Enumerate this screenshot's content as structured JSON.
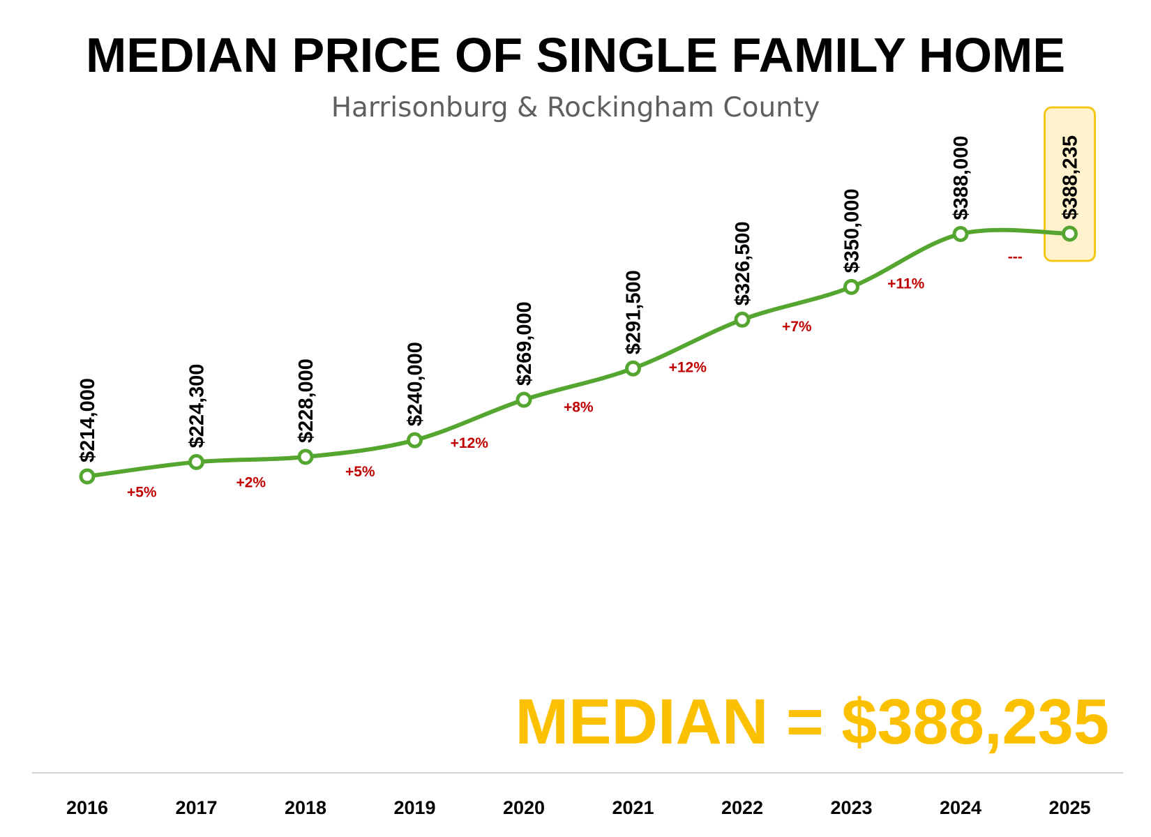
{
  "chart_data": {
    "type": "line",
    "title": "MEDIAN PRICE OF SINGLE FAMILY HOME",
    "subtitle": "Harrisonburg & Rockingham County",
    "categories": [
      "2016",
      "2017",
      "2018",
      "2019",
      "2020",
      "2021",
      "2022",
      "2023",
      "2024",
      "2025"
    ],
    "values": [
      214000,
      224300,
      228000,
      240000,
      269000,
      291500,
      326500,
      350000,
      388000,
      388235
    ],
    "value_labels": [
      "$214,000",
      "$224,300",
      "$228,000",
      "$240,000",
      "$269,000",
      "$291,500",
      "$326,500",
      "$350,000",
      "$388,000",
      "$388,235"
    ],
    "change_labels": [
      "+5%",
      "+2%",
      "+5%",
      "+12%",
      "+8%",
      "+12%",
      "+7%",
      "+11%",
      "---"
    ],
    "highlight_index": 9,
    "callout": "MEDIAN = $388,235",
    "xlabel": "",
    "ylabel": "",
    "grid": false,
    "legend": "none"
  },
  "colors": {
    "line": "#55a630",
    "marker_fill": "#ffffff",
    "change_text": "#c00000",
    "highlight_fill": "#fff2cc",
    "highlight_stroke": "#f5c518",
    "callout_text": "#fbc000",
    "axis_line": "#d0d0d0"
  }
}
